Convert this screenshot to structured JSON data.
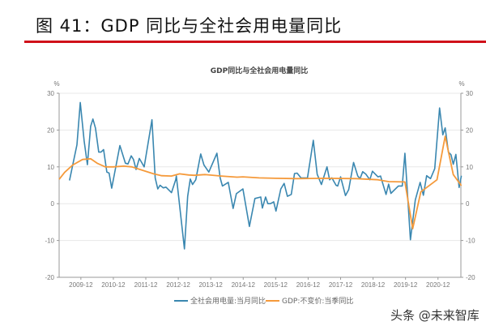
{
  "figure_title": "图 41：GDP 同比与全社会用电量同比",
  "watermark": "头条 @未来智库",
  "chart_data": {
    "type": "line",
    "title": "GDP同比与全社会用电量同比",
    "ylabel_left": "%",
    "ylabel_right": "%",
    "ylim": [
      -20,
      30
    ],
    "yticks": [
      30,
      20,
      10,
      0,
      -10,
      -20
    ],
    "xlim": [
      2009.25,
      2021.7
    ],
    "xticks": [
      {
        "label": "2009-12",
        "x": 2009.92
      },
      {
        "label": "2010-12",
        "x": 2010.92
      },
      {
        "label": "2011-12",
        "x": 2011.92
      },
      {
        "label": "2012-12",
        "x": 2012.92
      },
      {
        "label": "2013-12",
        "x": 2013.92
      },
      {
        "label": "2014-12",
        "x": 2014.92
      },
      {
        "label": "2015-12",
        "x": 2015.92
      },
      {
        "label": "2016-12",
        "x": 2016.92
      },
      {
        "label": "2017-12",
        "x": 2017.92
      },
      {
        "label": "2018-12",
        "x": 2018.92
      },
      {
        "label": "2019-12",
        "x": 2019.92
      },
      {
        "label": "2020-12",
        "x": 2020.92
      }
    ],
    "grid": true,
    "legend_position": "bottom",
    "series": [
      {
        "name": "全社会用电量:当月同比",
        "color": "#3a87b0",
        "points": [
          [
            2009.57,
            6.3
          ],
          [
            2009.8,
            16
          ],
          [
            2009.9,
            27.5
          ],
          [
            2010.02,
            17
          ],
          [
            2010.12,
            10.6
          ],
          [
            2010.22,
            21
          ],
          [
            2010.29,
            23
          ],
          [
            2010.37,
            20.5
          ],
          [
            2010.47,
            14
          ],
          [
            2010.54,
            14
          ],
          [
            2010.62,
            14.7
          ],
          [
            2010.72,
            8.6
          ],
          [
            2010.79,
            8.3
          ],
          [
            2010.87,
            4.2
          ],
          [
            2011.12,
            15.8
          ],
          [
            2011.29,
            11
          ],
          [
            2011.37,
            10.8
          ],
          [
            2011.47,
            13
          ],
          [
            2011.54,
            12
          ],
          [
            2011.62,
            9.3
          ],
          [
            2011.72,
            12.3
          ],
          [
            2011.87,
            10
          ],
          [
            2012.11,
            22.8
          ],
          [
            2012.21,
            7
          ],
          [
            2012.29,
            4
          ],
          [
            2012.36,
            5
          ],
          [
            2012.46,
            4.3
          ],
          [
            2012.54,
            4.5
          ],
          [
            2012.71,
            3
          ],
          [
            2012.84,
            6.5
          ],
          [
            2012.86,
            7.5
          ],
          [
            2013.11,
            -12.3
          ],
          [
            2013.21,
            2
          ],
          [
            2013.29,
            6.7
          ],
          [
            2013.36,
            5.2
          ],
          [
            2013.46,
            6.5
          ],
          [
            2013.61,
            13.5
          ],
          [
            2013.71,
            10.5
          ],
          [
            2013.86,
            8.6
          ],
          [
            2014.11,
            13.7
          ],
          [
            2014.21,
            7
          ],
          [
            2014.28,
            4.8
          ],
          [
            2014.46,
            5.8
          ],
          [
            2014.61,
            -1.3
          ],
          [
            2014.71,
            2.7
          ],
          [
            2014.91,
            4
          ],
          [
            2015.11,
            -6.2
          ],
          [
            2015.28,
            1.4
          ],
          [
            2015.46,
            1.8
          ],
          [
            2015.51,
            -1.2
          ],
          [
            2015.61,
            1.8
          ],
          [
            2015.68,
            0
          ],
          [
            2015.76,
            0
          ],
          [
            2015.86,
            0.5
          ],
          [
            2015.93,
            -2
          ],
          [
            2016.08,
            4
          ],
          [
            2016.18,
            5.5
          ],
          [
            2016.28,
            2
          ],
          [
            2016.4,
            2.5
          ],
          [
            2016.5,
            8.2
          ],
          [
            2016.58,
            8.3
          ],
          [
            2016.7,
            7
          ],
          [
            2016.9,
            7
          ],
          [
            2017.08,
            17.2
          ],
          [
            2017.2,
            8
          ],
          [
            2017.33,
            5.2
          ],
          [
            2017.5,
            10
          ],
          [
            2017.58,
            6.5
          ],
          [
            2017.65,
            7
          ],
          [
            2017.78,
            5
          ],
          [
            2017.83,
            4.8
          ],
          [
            2017.92,
            7.3
          ],
          [
            2018.07,
            2.2
          ],
          [
            2018.17,
            3.8
          ],
          [
            2018.32,
            11.2
          ],
          [
            2018.45,
            7.5
          ],
          [
            2018.52,
            6.8
          ],
          [
            2018.6,
            8.7
          ],
          [
            2018.7,
            8
          ],
          [
            2018.82,
            6.5
          ],
          [
            2018.9,
            8.8
          ],
          [
            2019.07,
            7.3
          ],
          [
            2019.15,
            7.5
          ],
          [
            2019.32,
            2.5
          ],
          [
            2019.4,
            5.3
          ],
          [
            2019.47,
            2.8
          ],
          [
            2019.7,
            4.8
          ],
          [
            2019.82,
            4.8
          ],
          [
            2019.9,
            13.7
          ],
          [
            2020.07,
            -9.8
          ],
          [
            2020.22,
            1
          ],
          [
            2020.37,
            5.8
          ],
          [
            2020.47,
            2.3
          ],
          [
            2020.57,
            7.6
          ],
          [
            2020.69,
            6.8
          ],
          [
            2020.82,
            9.5
          ],
          [
            2020.97,
            26
          ],
          [
            2021.07,
            18.7
          ],
          [
            2021.14,
            20.6
          ],
          [
            2021.24,
            14
          ],
          [
            2021.32,
            13.3
          ],
          [
            2021.39,
            10.7
          ],
          [
            2021.47,
            13.4
          ],
          [
            2021.57,
            4.4
          ],
          [
            2021.64,
            7.6
          ]
        ]
      },
      {
        "name": "GDP:不变价:当季同比",
        "color": "#f59a3b",
        "points": [
          [
            2009.25,
            6.6
          ],
          [
            2009.42,
            8.5
          ],
          [
            2009.67,
            10.5
          ],
          [
            2009.97,
            12
          ],
          [
            2010.22,
            12.2
          ],
          [
            2010.42,
            11
          ],
          [
            2010.67,
            10
          ],
          [
            2010.92,
            10
          ],
          [
            2011.24,
            10.2
          ],
          [
            2011.49,
            10
          ],
          [
            2011.74,
            9.3
          ],
          [
            2012.16,
            8.1
          ],
          [
            2012.41,
            7.6
          ],
          [
            2012.71,
            7.5
          ],
          [
            2012.96,
            8.1
          ],
          [
            2013.24,
            7.8
          ],
          [
            2013.41,
            7.7
          ],
          [
            2013.74,
            7.9
          ],
          [
            2014.24,
            7.5
          ],
          [
            2014.73,
            7.2
          ],
          [
            2014.91,
            7.3
          ],
          [
            2015.41,
            7.0
          ],
          [
            2015.91,
            6.9
          ],
          [
            2016.58,
            6.8
          ],
          [
            2017.4,
            6.9
          ],
          [
            2018.4,
            6.8
          ],
          [
            2019.07,
            6.5
          ],
          [
            2019.4,
            6.0
          ],
          [
            2019.9,
            5.9
          ],
          [
            2020.14,
            -6.8
          ],
          [
            2020.39,
            3.2
          ],
          [
            2020.89,
            6.5
          ],
          [
            2021.14,
            18.3
          ],
          [
            2021.39,
            7.9
          ],
          [
            2021.64,
            4.9
          ]
        ]
      }
    ]
  }
}
